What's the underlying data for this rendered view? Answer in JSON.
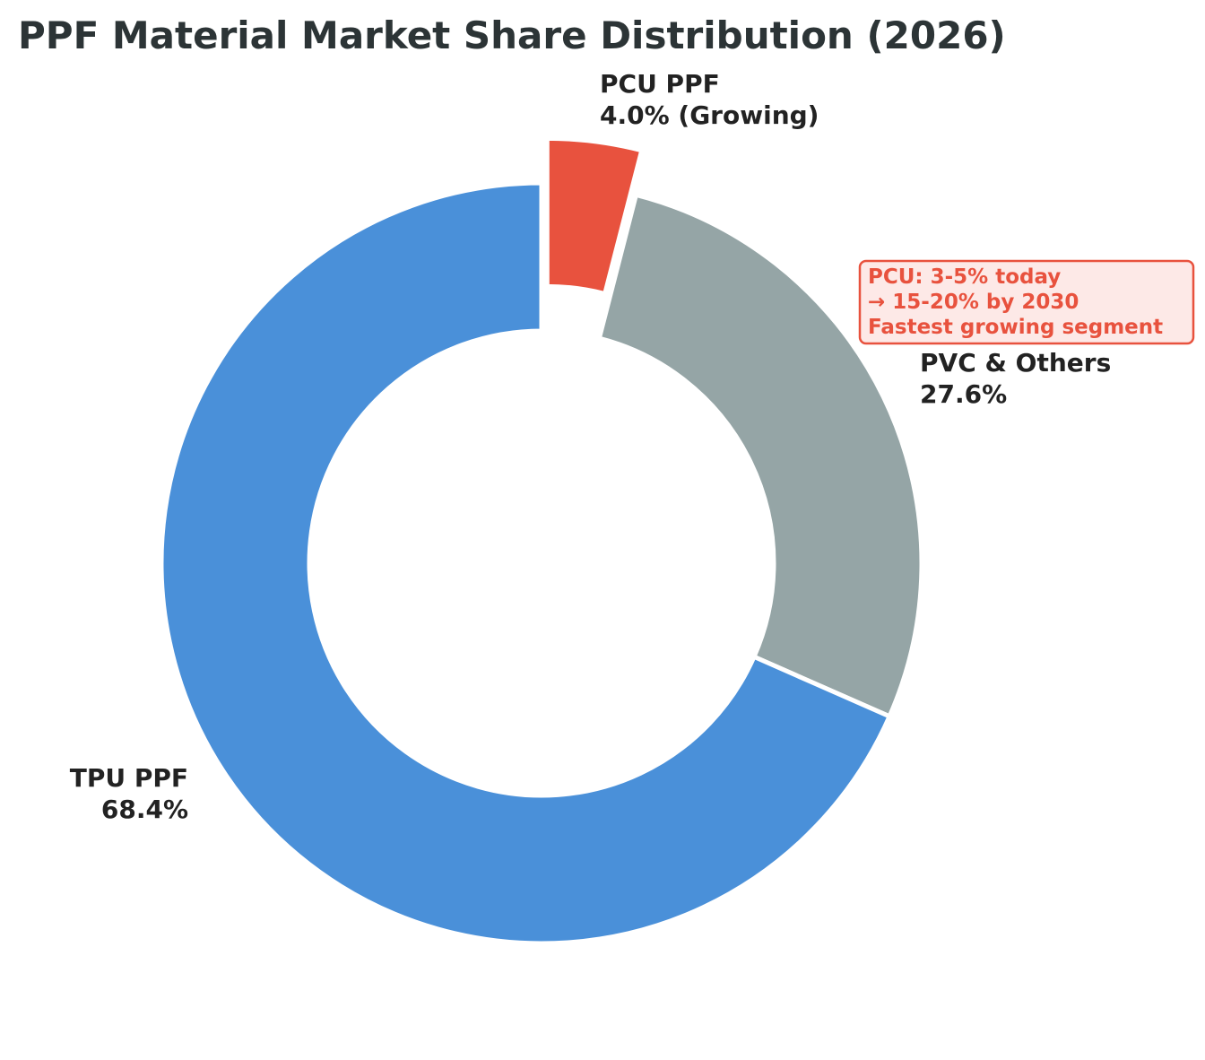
{
  "chart_data": {
    "type": "pie",
    "donut": true,
    "title": "PPF Material Market Share Distribution (2026)",
    "slices": [
      {
        "name": "PCU PPF",
        "value": 4.0,
        "pct_label": "4.0% (Growing)",
        "color": "#e8523e",
        "exploded": true
      },
      {
        "name": "PVC & Others",
        "value": 27.6,
        "pct_label": "27.6%",
        "color": "#95a5a6",
        "exploded": false
      },
      {
        "name": "TPU PPF",
        "value": 68.4,
        "pct_label": "68.4%",
        "color": "#4a90d9",
        "exploded": false
      }
    ],
    "start_angle_deg": 90,
    "direction": "clockwise",
    "annotation": {
      "lines": [
        "PCU: 3-5% today",
        "→ 15-20% by 2030",
        "Fastest growing segment"
      ],
      "text_color": "#e8523e",
      "box_fill": "#fde9e7",
      "box_edge": "#e8523e"
    },
    "legend": "none",
    "grid": false
  }
}
